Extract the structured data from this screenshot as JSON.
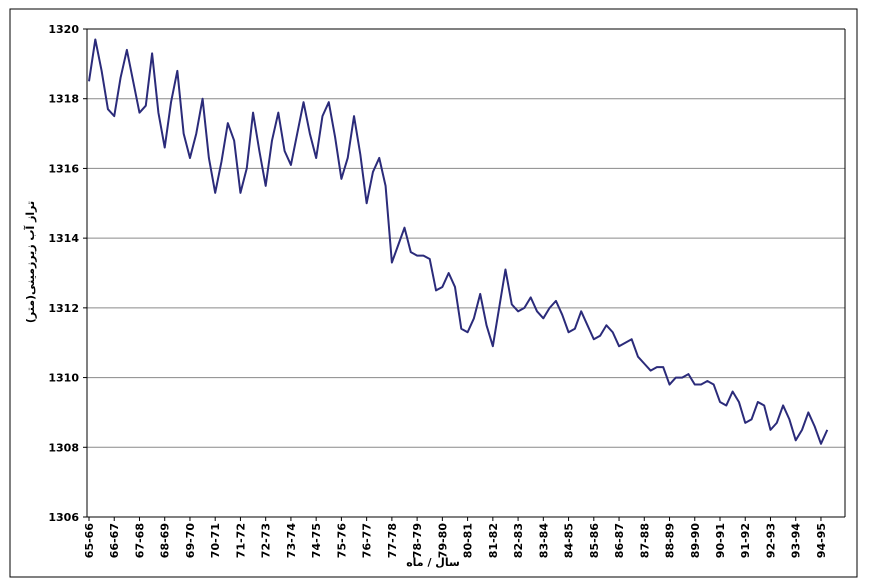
{
  "chart_data": {
    "type": "line",
    "y_label": "تراز آب زیرزمینی(متر)",
    "x_label": "سال / ماه",
    "categories": [
      "65-66",
      null,
      null,
      null,
      "66-67",
      null,
      null,
      null,
      "67-68",
      null,
      null,
      null,
      "68-69",
      null,
      null,
      null,
      "69-70",
      null,
      null,
      null,
      "70-71",
      null,
      null,
      null,
      "71-72",
      null,
      null,
      null,
      "72-73",
      null,
      null,
      null,
      "73-74",
      null,
      null,
      null,
      "74-75",
      null,
      null,
      null,
      "75-76",
      null,
      null,
      null,
      "76-77",
      null,
      null,
      null,
      "77-78",
      null,
      null,
      null,
      "78-79",
      null,
      null,
      null,
      "79-80",
      null,
      null,
      null,
      "80-81",
      null,
      null,
      null,
      "81-82",
      null,
      null,
      null,
      "82-83",
      null,
      null,
      null,
      "83-84",
      null,
      null,
      null,
      "84-85",
      null,
      null,
      null,
      "85-86",
      null,
      null,
      null,
      "86-87",
      null,
      null,
      null,
      "87-88",
      null,
      null,
      null,
      "88-89",
      null,
      null,
      null,
      "89-90",
      null,
      null,
      null,
      "90-91",
      null,
      null,
      null,
      "91-92",
      null,
      null,
      null,
      "92-93",
      null,
      null,
      null,
      "93-94",
      null,
      null,
      null,
      "94-95",
      null
    ],
    "series": [
      {
        "name": "تراز آب زیرزمینی",
        "color": "#2b2b7a",
        "values": [
          1318.5,
          1319.7,
          1318.8,
          1317.7,
          1317.5,
          1318.6,
          1319.4,
          1318.5,
          1317.6,
          1317.8,
          1319.3,
          1317.6,
          1316.6,
          1317.9,
          1318.8,
          1317.0,
          1316.3,
          1317.0,
          1318.0,
          1316.3,
          1315.3,
          1316.2,
          1317.3,
          1316.8,
          1315.3,
          1316.0,
          1317.6,
          1316.5,
          1315.5,
          1316.8,
          1317.6,
          1316.5,
          1316.1,
          1317.0,
          1317.9,
          1317.0,
          1316.3,
          1317.5,
          1317.9,
          1316.9,
          1315.7,
          1316.3,
          1317.5,
          1316.4,
          1315.0,
          1315.9,
          1316.3,
          1315.5,
          1313.3,
          1313.8,
          1314.3,
          1313.6,
          1313.5,
          1313.5,
          1313.4,
          1312.5,
          1312.6,
          1313.0,
          1312.6,
          1311.4,
          1311.3,
          1311.7,
          1312.4,
          1311.5,
          1310.9,
          1312.0,
          1313.1,
          1312.1,
          1311.9,
          1312.0,
          1312.3,
          1311.9,
          1311.7,
          1312.0,
          1312.2,
          1311.8,
          1311.3,
          1311.4,
          1311.9,
          1311.5,
          1311.1,
          1311.2,
          1311.5,
          1311.3,
          1310.9,
          1311.0,
          1311.1,
          1310.6,
          1310.4,
          1310.2,
          1310.3,
          1310.3,
          1309.8,
          1310.0,
          1310.0,
          1310.1,
          1309.8,
          1309.8,
          1309.9,
          1309.8,
          1309.3,
          1309.2,
          1309.6,
          1309.3,
          1308.7,
          1308.8,
          1309.3,
          1309.2,
          1308.5,
          1308.7,
          1309.2,
          1308.8,
          1308.2,
          1308.5,
          1309.0,
          1308.6,
          1308.1,
          1308.5
        ]
      }
    ],
    "ylim": [
      1306,
      1320
    ],
    "yticks": [
      1306,
      1308,
      1310,
      1312,
      1314,
      1316,
      1318,
      1320
    ],
    "grid": true
  }
}
